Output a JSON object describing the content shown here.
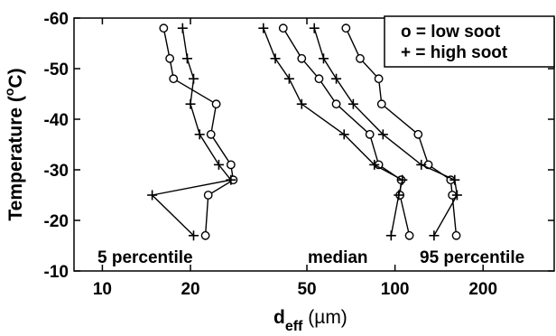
{
  "chart_data": {
    "type": "line",
    "x_scale": "log",
    "xlim": [
      8,
      350
    ],
    "ylim": [
      -60,
      -10
    ],
    "y_reversed": true,
    "xlabel_main": "d",
    "xlabel_sub": "eff",
    "xlabel_unit": " (µm)",
    "ylabel_main": "Temperature (",
    "ylabel_deg": "o",
    "ylabel_unit": "C)",
    "x_ticks": [
      10,
      20,
      50,
      100,
      200
    ],
    "x_tick_labels": [
      "10",
      "20",
      "50",
      "100",
      "200"
    ],
    "y_ticks": [
      -60,
      -50,
      -40,
      -30,
      -20,
      -10
    ],
    "y_tick_labels": [
      "-60",
      "-50",
      "-40",
      "-30",
      "-20",
      "-10"
    ],
    "legend": {
      "position": "top-right",
      "entries": [
        {
          "symbol": "o",
          "text": "o = low soot"
        },
        {
          "symbol": "+",
          "text": "+ = high soot"
        }
      ]
    },
    "annotations": [
      {
        "text": "5 percentile"
      },
      {
        "text": "median"
      },
      {
        "text": "95 percentile"
      }
    ],
    "temperatures": [
      -58,
      -52,
      -48,
      -43,
      -37,
      -31,
      -28,
      -25,
      -17
    ],
    "series": [
      {
        "group": "5 percentile",
        "soot": "low",
        "marker": "o",
        "x": [
          16.2,
          17.0,
          17.5,
          24.5,
          23.5,
          27.5,
          28.0,
          23.0,
          22.5
        ]
      },
      {
        "group": "5 percentile",
        "soot": "high",
        "marker": "+",
        "x": [
          18.8,
          19.5,
          20.5,
          20.0,
          21.5,
          25.0,
          27.5,
          14.8,
          20.5
        ]
      },
      {
        "group": "median",
        "soot": "low",
        "marker": "o",
        "x": [
          41.5,
          48.0,
          55.0,
          63.0,
          82.0,
          88.0,
          105.0,
          104.0,
          112.0
        ]
      },
      {
        "group": "median",
        "soot": "high",
        "marker": "+",
        "x": [
          35.5,
          39.0,
          43.5,
          48.0,
          67.0,
          85.0,
          106.0,
          103.0,
          97.0
        ]
      },
      {
        "group": "95 percentile",
        "soot": "low",
        "marker": "o",
        "x": [
          68.0,
          76.0,
          88.0,
          90.0,
          120.0,
          130.0,
          155.0,
          157.0,
          162.0
        ]
      },
      {
        "group": "95 percentile",
        "soot": "high",
        "marker": "+",
        "x": [
          53.0,
          57.0,
          63.0,
          72.0,
          91.0,
          123.0,
          160.0,
          163.0,
          136.0
        ]
      }
    ]
  }
}
